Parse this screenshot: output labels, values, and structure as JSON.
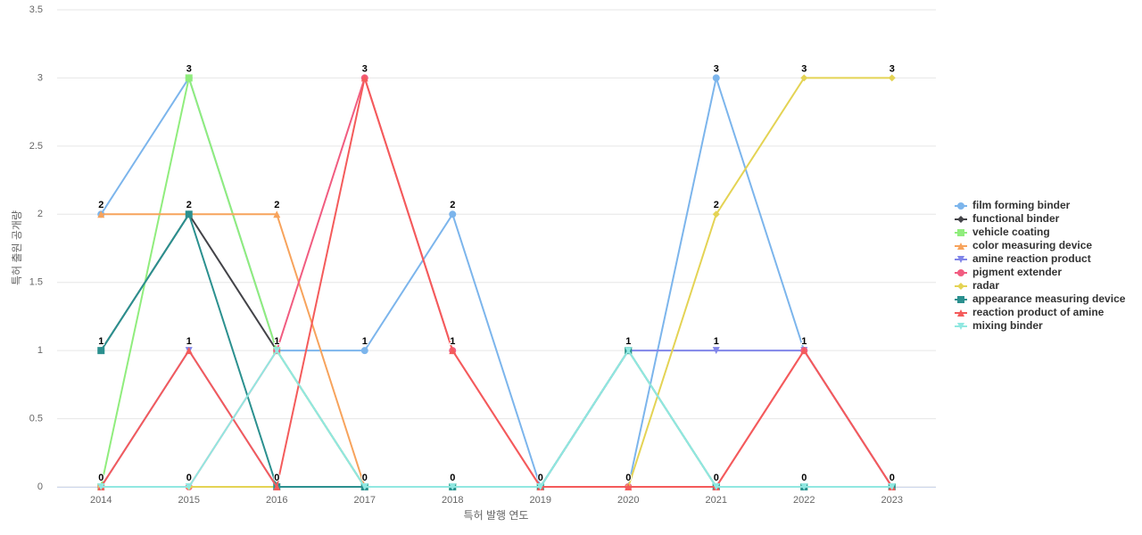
{
  "chart_data": {
    "type": "line",
    "x_label": "특허 발행 연도",
    "y_label": "특허 출원 공개량",
    "categories": [
      "2014",
      "2015",
      "2016",
      "2017",
      "2018",
      "2019",
      "2020",
      "2021",
      "2022",
      "2023"
    ],
    "ylim": [
      0,
      3.5
    ],
    "yticks": [
      0,
      0.5,
      1,
      1.5,
      2,
      2.5,
      3,
      3.5
    ],
    "grid": true,
    "legend": "right",
    "series": [
      {
        "name": "film forming binder",
        "color": "#7cb5ec",
        "marker": "circle",
        "values": [
          2,
          3,
          1,
          1,
          2,
          0,
          0,
          3,
          1,
          0
        ]
      },
      {
        "name": "functional binder",
        "color": "#434348",
        "marker": "diamond",
        "values": [
          1,
          2,
          1,
          0,
          0,
          0,
          0,
          0,
          0,
          0
        ]
      },
      {
        "name": "vehicle coating",
        "color": "#90ed7d",
        "marker": "square",
        "values": [
          0,
          3,
          1,
          0,
          0,
          0,
          1,
          0,
          0,
          0
        ]
      },
      {
        "name": "color measuring device",
        "color": "#f7a35c",
        "marker": "triangle",
        "values": [
          2,
          2,
          2,
          0,
          0,
          0,
          0,
          0,
          0,
          0
        ]
      },
      {
        "name": "amine reaction product",
        "color": "#8085e9",
        "marker": "triangle-down",
        "values": [
          0,
          1,
          0,
          0,
          0,
          0,
          1,
          1,
          1,
          0
        ]
      },
      {
        "name": "pigment extender",
        "color": "#f15c80",
        "marker": "circle",
        "values": [
          0,
          0,
          1,
          3,
          1,
          0,
          0,
          0,
          1,
          0
        ]
      },
      {
        "name": "radar",
        "color": "#e4d354",
        "marker": "diamond",
        "values": [
          0,
          0,
          0,
          0,
          0,
          0,
          0,
          2,
          3,
          3
        ]
      },
      {
        "name": "appearance measuring device",
        "color": "#2b908f",
        "marker": "square",
        "values": [
          1,
          2,
          0,
          0,
          0,
          0,
          1,
          0,
          0,
          0
        ]
      },
      {
        "name": "reaction product of amine",
        "color": "#f45b5b",
        "marker": "triangle",
        "values": [
          0,
          1,
          0,
          3,
          1,
          0,
          0,
          0,
          1,
          0
        ]
      },
      {
        "name": "mixing binder",
        "color": "#91e8e1",
        "marker": "triangle-down",
        "values": [
          0,
          0,
          1,
          0,
          0,
          0,
          1,
          0,
          0,
          0
        ]
      }
    ]
  }
}
